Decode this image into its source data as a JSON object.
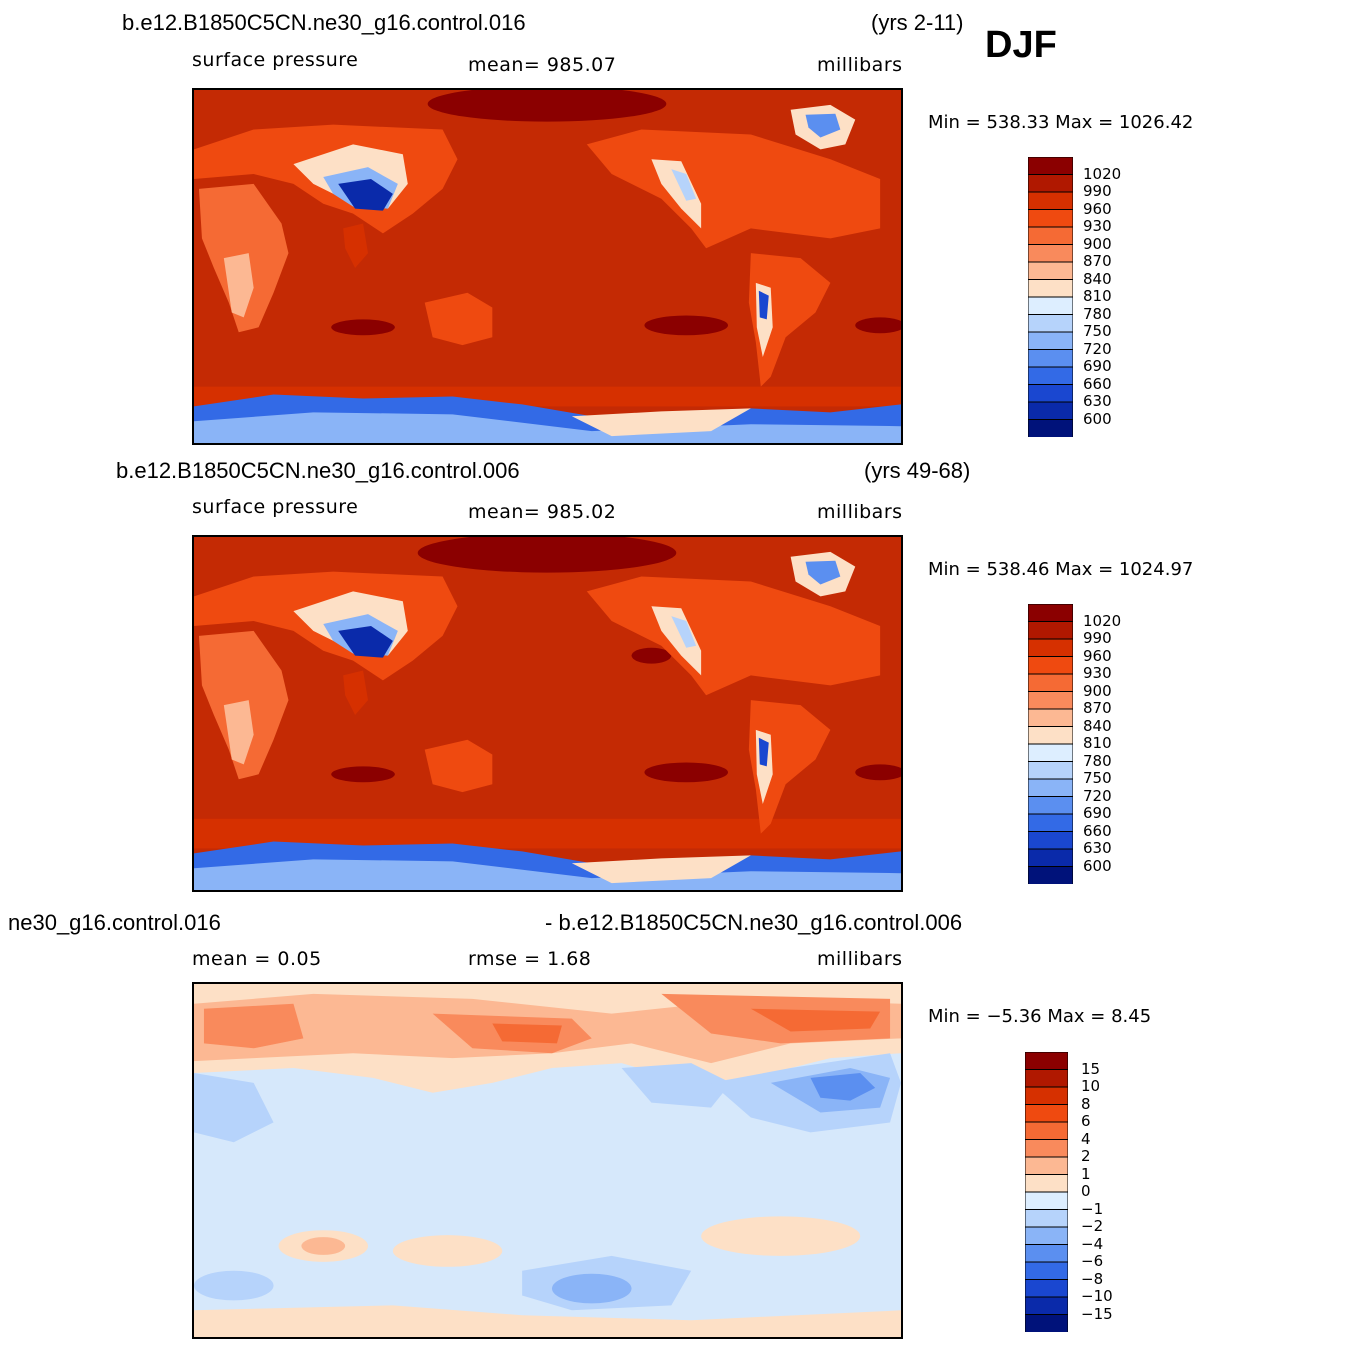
{
  "season": "DJF",
  "panels": [
    {
      "id": "p1",
      "case_left": "b.e12.B1850C5CN.ne30_g16.control.016",
      "case_right": "(yrs 2-11)",
      "variable": "surface  pressure",
      "stat": "mean=  985.07",
      "units": "millibars",
      "minmax": "Min  =  538.33  Max  =  1026.42",
      "levels": [
        "1020",
        "990",
        "960",
        "930",
        "900",
        "870",
        "840",
        "810",
        "780",
        "750",
        "720",
        "690",
        "660",
        "630",
        "600"
      ],
      "colors": [
        "#8b0000",
        "#b01800",
        "#d63000",
        "#ef4a10",
        "#f56a34",
        "#f98a5c",
        "#fcb893",
        "#fde0c6",
        "#ddeeff",
        "#b6d3fb",
        "#8ab4f7",
        "#5b8ff0",
        "#336ae6",
        "#1a47d0",
        "#0a2aaa",
        "#00127a"
      ],
      "background_color": "#c42a04"
    },
    {
      "id": "p2",
      "case_left": "b.e12.B1850C5CN.ne30_g16.control.006",
      "case_right": "(yrs 49-68)",
      "variable": "surface  pressure",
      "stat": "mean=  985.02",
      "units": "millibars",
      "minmax": "Min  =  538.46  Max  =  1024.97",
      "levels": [
        "1020",
        "990",
        "960",
        "930",
        "900",
        "870",
        "840",
        "810",
        "780",
        "750",
        "720",
        "690",
        "660",
        "630",
        "600"
      ],
      "colors": [
        "#8b0000",
        "#b01800",
        "#d63000",
        "#ef4a10",
        "#f56a34",
        "#f98a5c",
        "#fcb893",
        "#fde0c6",
        "#ddeeff",
        "#b6d3fb",
        "#8ab4f7",
        "#5b8ff0",
        "#336ae6",
        "#1a47d0",
        "#0a2aaa",
        "#00127a"
      ],
      "background_color": "#c42a04"
    },
    {
      "id": "p3",
      "case_left": "ne30_g16.control.016",
      "case_right": "- b.e12.B1850C5CN.ne30_g16.control.006",
      "stat_mean": "mean  =     0.05",
      "stat_rmse": "rmse  =     1.68",
      "units": "millibars",
      "minmax": "Min  =    −5.36  Max  =      8.45",
      "levels": [
        "15",
        "10",
        "8",
        "6",
        "4",
        "2",
        "1",
        "0",
        "−1",
        "−2",
        "−4",
        "−6",
        "−8",
        "−10",
        "−15"
      ],
      "colors": [
        "#8b0000",
        "#b01800",
        "#d63000",
        "#ef4a10",
        "#f56a34",
        "#f98a5c",
        "#fcb893",
        "#fde0c6",
        "#ddeeff",
        "#b6d3fb",
        "#8ab4f7",
        "#5b8ff0",
        "#336ae6",
        "#1a47d0",
        "#0a2aaa",
        "#00127a"
      ],
      "background_color": "#d6e8fb"
    }
  ]
}
